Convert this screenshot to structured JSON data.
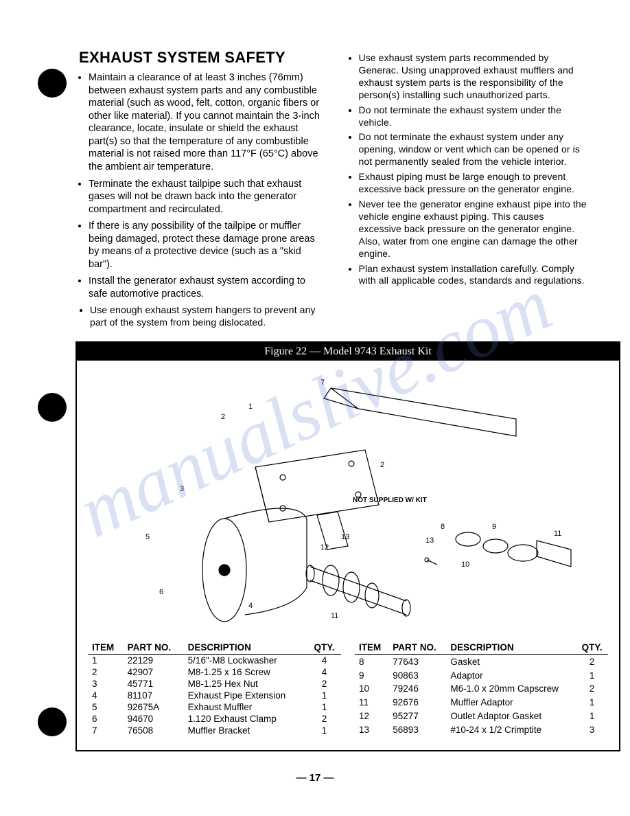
{
  "heading": "EXHAUST SYSTEM SAFETY",
  "left_bullets": [
    "Maintain a clearance of at least 3 inches (76mm) between exhaust system parts and any combustible material (such as wood, felt, cotton, organic fibers or other like material). If you cannot maintain the 3-inch clearance, locate, insulate or shield the exhaust part(s) so that the temperature of any combustible material is not raised more than 117°F (65°C) above the ambient air temperature.",
    "Terminate the exhaust tailpipe such that exhaust gases will not be drawn back into the generator compartment and recirculated.",
    "If there is any possibility of the tailpipe or muffler being damaged, protect these damage prone areas by means of a protective device (such as a \"skid bar\").",
    "Install the generator exhaust system according to safe automotive practices."
  ],
  "left_sub_bullets": [
    "Use enough exhaust system hangers to prevent any part of the system from being dislocated."
  ],
  "right_sub_bullets": [
    "Use exhaust system parts recommended by Generac. Using unapproved exhaust mufflers and exhaust system parts is the responsibility of the person(s) installing such unauthorized parts.",
    "Do not terminate the exhaust system under the vehicle.",
    "Do not terminate the exhaust system under any opening, window or vent which can be opened or is not permanently sealed from the vehicle interior.",
    "Exhaust piping must be large enough to prevent excessive back pressure on the generator engine.",
    "Never tee the generator engine exhaust pipe into the vehicle engine exhaust piping. This causes excessive back pressure on the generator engine. Also, water from one engine can damage the other engine.",
    "Plan exhaust system installation carefully. Comply with all applicable codes, standards and regulations."
  ],
  "figure_title": "Figure 22 — Model 9743 Exhaust Kit",
  "not_supplied_label": "NOT SUPPLIED W/ KIT",
  "table_headers": [
    "ITEM",
    "PART NO.",
    "DESCRIPTION",
    "QTY."
  ],
  "table_left": [
    [
      "1",
      "22129",
      "5/16\"-M8 Lockwasher",
      "4"
    ],
    [
      "2",
      "42907",
      "M8-1.25 x 16 Screw",
      "4"
    ],
    [
      "3",
      "45771",
      "M8-1.25 Hex Nut",
      "2"
    ],
    [
      "4",
      "81107",
      "Exhaust Pipe Extension",
      "1"
    ],
    [
      "5",
      "92675A",
      "Exhaust Muffler",
      "1"
    ],
    [
      "6",
      "94670",
      "1.120 Exhaust Clamp",
      "2"
    ],
    [
      "7",
      "76508",
      "Muffler Bracket",
      "1"
    ]
  ],
  "table_right": [
    [
      "8",
      "77643",
      "Gasket",
      "2"
    ],
    [
      "9",
      "90863",
      "Adaptor",
      "1"
    ],
    [
      "10",
      "79246",
      "M6-1.0 x 20mm Capscrew",
      "2"
    ],
    [
      "11",
      "92676",
      "Muffler Adaptor",
      "1"
    ],
    [
      "12",
      "95277",
      "Outlet Adaptor Gasket",
      "1"
    ],
    [
      "13",
      "56893",
      "#10-24 x 1/2 Crimptite",
      "3"
    ]
  ],
  "page_number": "— 17 —",
  "watermark": "manualslive.com"
}
